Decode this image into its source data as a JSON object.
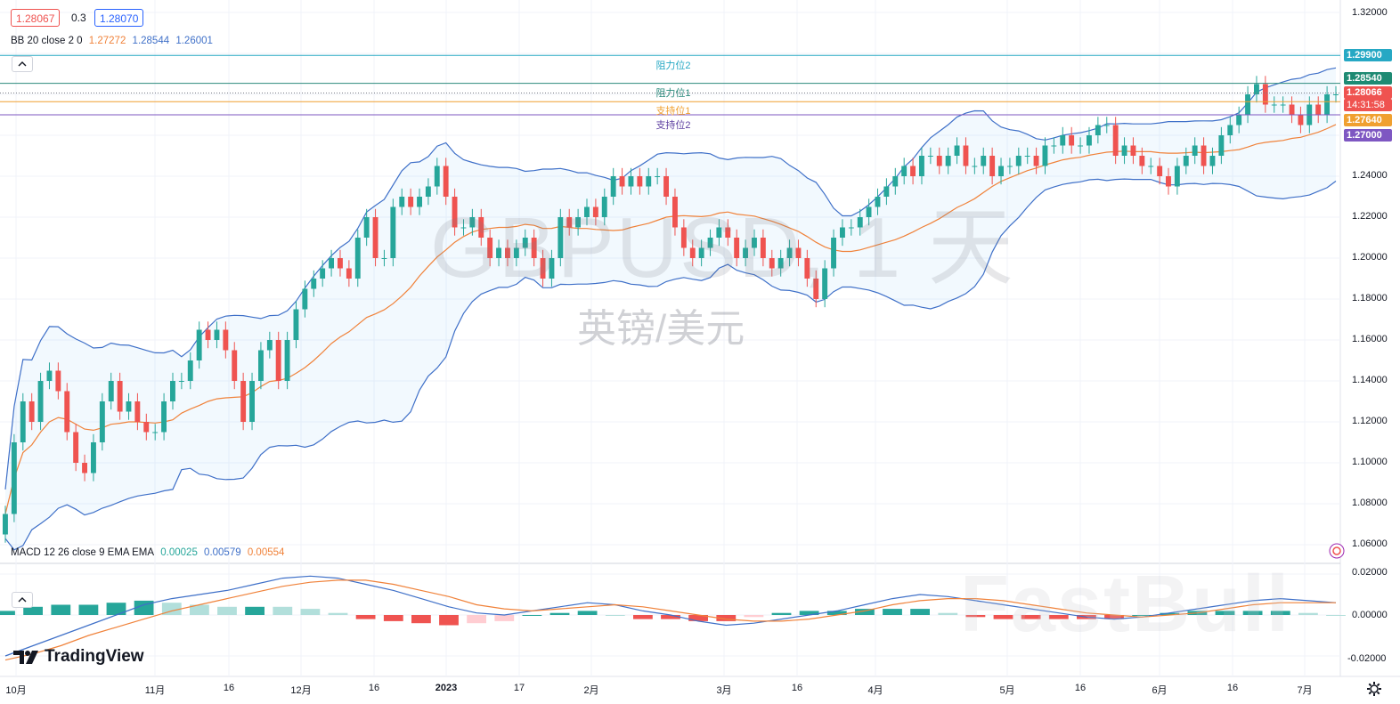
{
  "header": {
    "bid": "1.28067",
    "spread": "0.3",
    "ask": "1.28070"
  },
  "bb_legend": {
    "label": "BB 20 close 2 0",
    "basis": "1.27272",
    "upper": "1.28544",
    "lower": "1.26001"
  },
  "macd_legend": {
    "label": "MACD 12 26 close 9 EMA EMA",
    "hist": "0.00025",
    "macd": "0.00579",
    "signal": "0.00554"
  },
  "watermark": {
    "symbol": "GBPUSD, 1 天",
    "name": "英镑/美元",
    "brand": "FastBull"
  },
  "logo": {
    "text": "TradingView"
  },
  "levels": [
    {
      "name": "阻力位2",
      "price": 1.299,
      "label": "1.29900",
      "color": "#26a8c4"
    },
    {
      "name": "阻力位1",
      "price": 1.2854,
      "label": "1.28540",
      "color": "#2b8a7c"
    },
    {
      "name": "支持位1",
      "price": 1.2764,
      "label": "1.27640",
      "color": "#f0a030"
    },
    {
      "name": "支持位2",
      "price": 1.27,
      "label": "1.27000",
      "color": "#7e57c2"
    }
  ],
  "current_price": {
    "label": "1.28066",
    "countdown": "14:31:58",
    "color": "#ef5350"
  },
  "colors": {
    "up": "#26a69a",
    "down": "#ef5350",
    "bb_band": "#3f70c8",
    "bb_basis": "#f0823a",
    "macd_line": "#3f70c8",
    "signal_line": "#f0823a"
  },
  "chart_data": [
    {
      "type": "candlestick",
      "title": "GBPUSD, 1 天",
      "subtitle": "英镑/美元",
      "ylim": [
        1.05,
        1.325
      ],
      "y_ticks": [
        "1.32000",
        "1.24000",
        "1.22000",
        "1.20000",
        "1.18000",
        "1.16000",
        "1.14000",
        "1.12000",
        "1.10000",
        "1.08000",
        "1.06000"
      ],
      "x_ticks": [
        "10月",
        "11月",
        "16",
        "12月",
        "16",
        "2023",
        "17",
        "2月",
        "3月",
        "16",
        "4月",
        "5月",
        "16",
        "6月",
        "16",
        "7月"
      ],
      "series": [
        {
          "name": "close",
          "values": [
            1.075,
            1.11,
            1.13,
            1.12,
            1.14,
            1.145,
            1.135,
            1.115,
            1.1,
            1.095,
            1.11,
            1.13,
            1.14,
            1.125,
            1.13,
            1.12,
            1.115,
            1.115,
            1.13,
            1.14,
            1.14,
            1.15,
            1.165,
            1.16,
            1.165,
            1.155,
            1.14,
            1.12,
            1.14,
            1.155,
            1.16,
            1.14,
            1.16,
            1.175,
            1.185,
            1.19,
            1.195,
            1.2,
            1.195,
            1.19,
            1.21,
            1.22,
            1.2,
            1.2,
            1.225,
            1.23,
            1.225,
            1.23,
            1.235,
            1.245,
            1.23,
            1.215,
            1.215,
            1.22,
            1.21,
            1.2,
            1.205,
            1.2,
            1.205,
            1.21,
            1.2,
            1.19,
            1.2,
            1.22,
            1.215,
            1.22,
            1.225,
            1.22,
            1.23,
            1.24,
            1.235,
            1.24,
            1.235,
            1.24,
            1.24,
            1.23,
            1.215,
            1.205,
            1.2,
            1.205,
            1.21,
            1.215,
            1.21,
            1.2,
            1.205,
            1.21,
            1.2,
            1.195,
            1.2,
            1.205,
            1.2,
            1.19,
            1.18,
            1.195,
            1.21,
            1.215,
            1.215,
            1.22,
            1.225,
            1.23,
            1.235,
            1.24,
            1.245,
            1.24,
            1.25,
            1.25,
            1.245,
            1.25,
            1.255,
            1.245,
            1.245,
            1.25,
            1.24,
            1.245,
            1.245,
            1.25,
            1.25,
            1.245,
            1.255,
            1.255,
            1.26,
            1.255,
            1.255,
            1.26,
            1.265,
            1.265,
            1.25,
            1.255,
            1.25,
            1.245,
            1.245,
            1.24,
            1.235,
            1.245,
            1.25,
            1.255,
            1.245,
            1.25,
            1.26,
            1.265,
            1.27,
            1.28,
            1.285,
            1.275,
            1.275,
            1.275,
            1.27,
            1.265,
            1.275,
            1.27,
            1.28,
            1.28
          ]
        },
        {
          "name": "BB 20 close 2 0",
          "upper": 1.28544,
          "basis": 1.27272,
          "lower": 1.26001
        },
        {
          "name": "MACD 12 26 close 9 EMA EMA",
          "hist": 0.00025,
          "macd": 0.00579,
          "signal": 0.00554
        }
      ]
    },
    {
      "type": "line",
      "title": "MACD 12 26 close 9 EMA EMA",
      "ylim": [
        -0.025,
        0.025
      ],
      "y_ticks": [
        "0.02000",
        "0.00000",
        "-0.02000"
      ],
      "series": [
        {
          "name": "MACD",
          "values": [
            -0.02,
            -0.015,
            -0.01,
            -0.005,
            0.0,
            0.005,
            0.008,
            0.01,
            0.012,
            0.015,
            0.018,
            0.019,
            0.018,
            0.015,
            0.012,
            0.008,
            0.004,
            0.001,
            0.0,
            0.002,
            0.004,
            0.006,
            0.005,
            0.002,
            0.0,
            -0.003,
            -0.005,
            -0.004,
            -0.002,
            0.0,
            0.002,
            0.005,
            0.008,
            0.01,
            0.009,
            0.007,
            0.005,
            0.003,
            0.001,
            -0.001,
            -0.002,
            -0.001,
            0.001,
            0.003,
            0.005,
            0.007,
            0.008,
            0.007,
            0.006
          ]
        },
        {
          "name": "Signal",
          "values": [
            -0.022,
            -0.019,
            -0.015,
            -0.01,
            -0.006,
            -0.002,
            0.002,
            0.005,
            0.008,
            0.011,
            0.014,
            0.016,
            0.017,
            0.017,
            0.015,
            0.012,
            0.009,
            0.005,
            0.003,
            0.002,
            0.003,
            0.004,
            0.005,
            0.004,
            0.002,
            0.0,
            -0.002,
            -0.003,
            -0.003,
            -0.002,
            0.0,
            0.002,
            0.005,
            0.007,
            0.008,
            0.008,
            0.007,
            0.005,
            0.003,
            0.001,
            0.0,
            -0.001,
            0.0,
            0.001,
            0.003,
            0.005,
            0.006,
            0.006,
            0.006
          ]
        }
      ]
    }
  ]
}
